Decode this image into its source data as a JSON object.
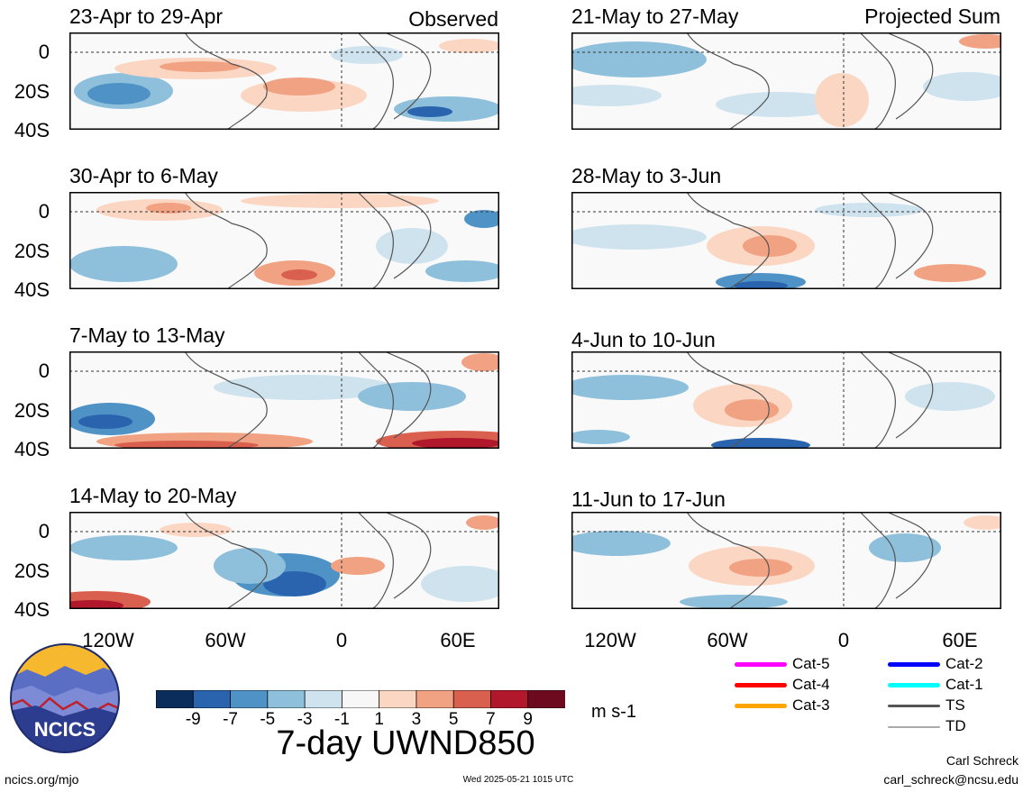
{
  "panels": [
    {
      "id": "p1",
      "title": "23-Apr to 29-Apr",
      "tag": "Observed"
    },
    {
      "id": "p2",
      "title": "30-Apr to 6-May",
      "tag": ""
    },
    {
      "id": "p3",
      "title": "7-May to 13-May",
      "tag": ""
    },
    {
      "id": "p4",
      "title": "14-May to 20-May",
      "tag": ""
    },
    {
      "id": "p5",
      "title": "21-May to 27-May",
      "tag": "Projected Sum"
    },
    {
      "id": "p6",
      "title": "28-May to 3-Jun",
      "tag": ""
    },
    {
      "id": "p7",
      "title": "4-Jun to 10-Jun",
      "tag": ""
    },
    {
      "id": "p8",
      "title": "11-Jun to 17-Jun",
      "tag": ""
    }
  ],
  "axes": {
    "y_labels": [
      "0",
      "20S",
      "40S"
    ],
    "x_labels": [
      "120W",
      "60W",
      "0",
      "60E"
    ]
  },
  "colorbar": {
    "ticks": [
      "-9",
      "-7",
      "-5",
      "-3",
      "-1",
      "1",
      "3",
      "5",
      "7",
      "9"
    ],
    "colors": [
      "#0b2d5c",
      "#2a64ae",
      "#4f93c6",
      "#8ec0dc",
      "#cfe3ef",
      "#f7f7f7",
      "#fbd7c3",
      "#f1a282",
      "#d9604e",
      "#b1182b",
      "#6e0a1f"
    ],
    "units": "m s-1",
    "title": "7-day UWND850"
  },
  "legend": [
    {
      "label": "Cat-5",
      "color": "#ff00ff"
    },
    {
      "label": "Cat-4",
      "color": "#ff0000"
    },
    {
      "label": "Cat-3",
      "color": "#ffa500"
    },
    {
      "label": "Cat-2",
      "color": "#0000ff"
    },
    {
      "label": "Cat-1",
      "color": "#00ffff"
    },
    {
      "label": "TS",
      "color": "#555555"
    },
    {
      "label": "TD",
      "color": "#aaaaaa"
    }
  ],
  "logo": {
    "text": "NCICS"
  },
  "footer": {
    "left": "ncics.org/mjo",
    "center": "Wed 2025-05-21 1015 UTC",
    "author": "Carl Schreck",
    "email": "carl_schreck@ncsu.edu"
  }
}
